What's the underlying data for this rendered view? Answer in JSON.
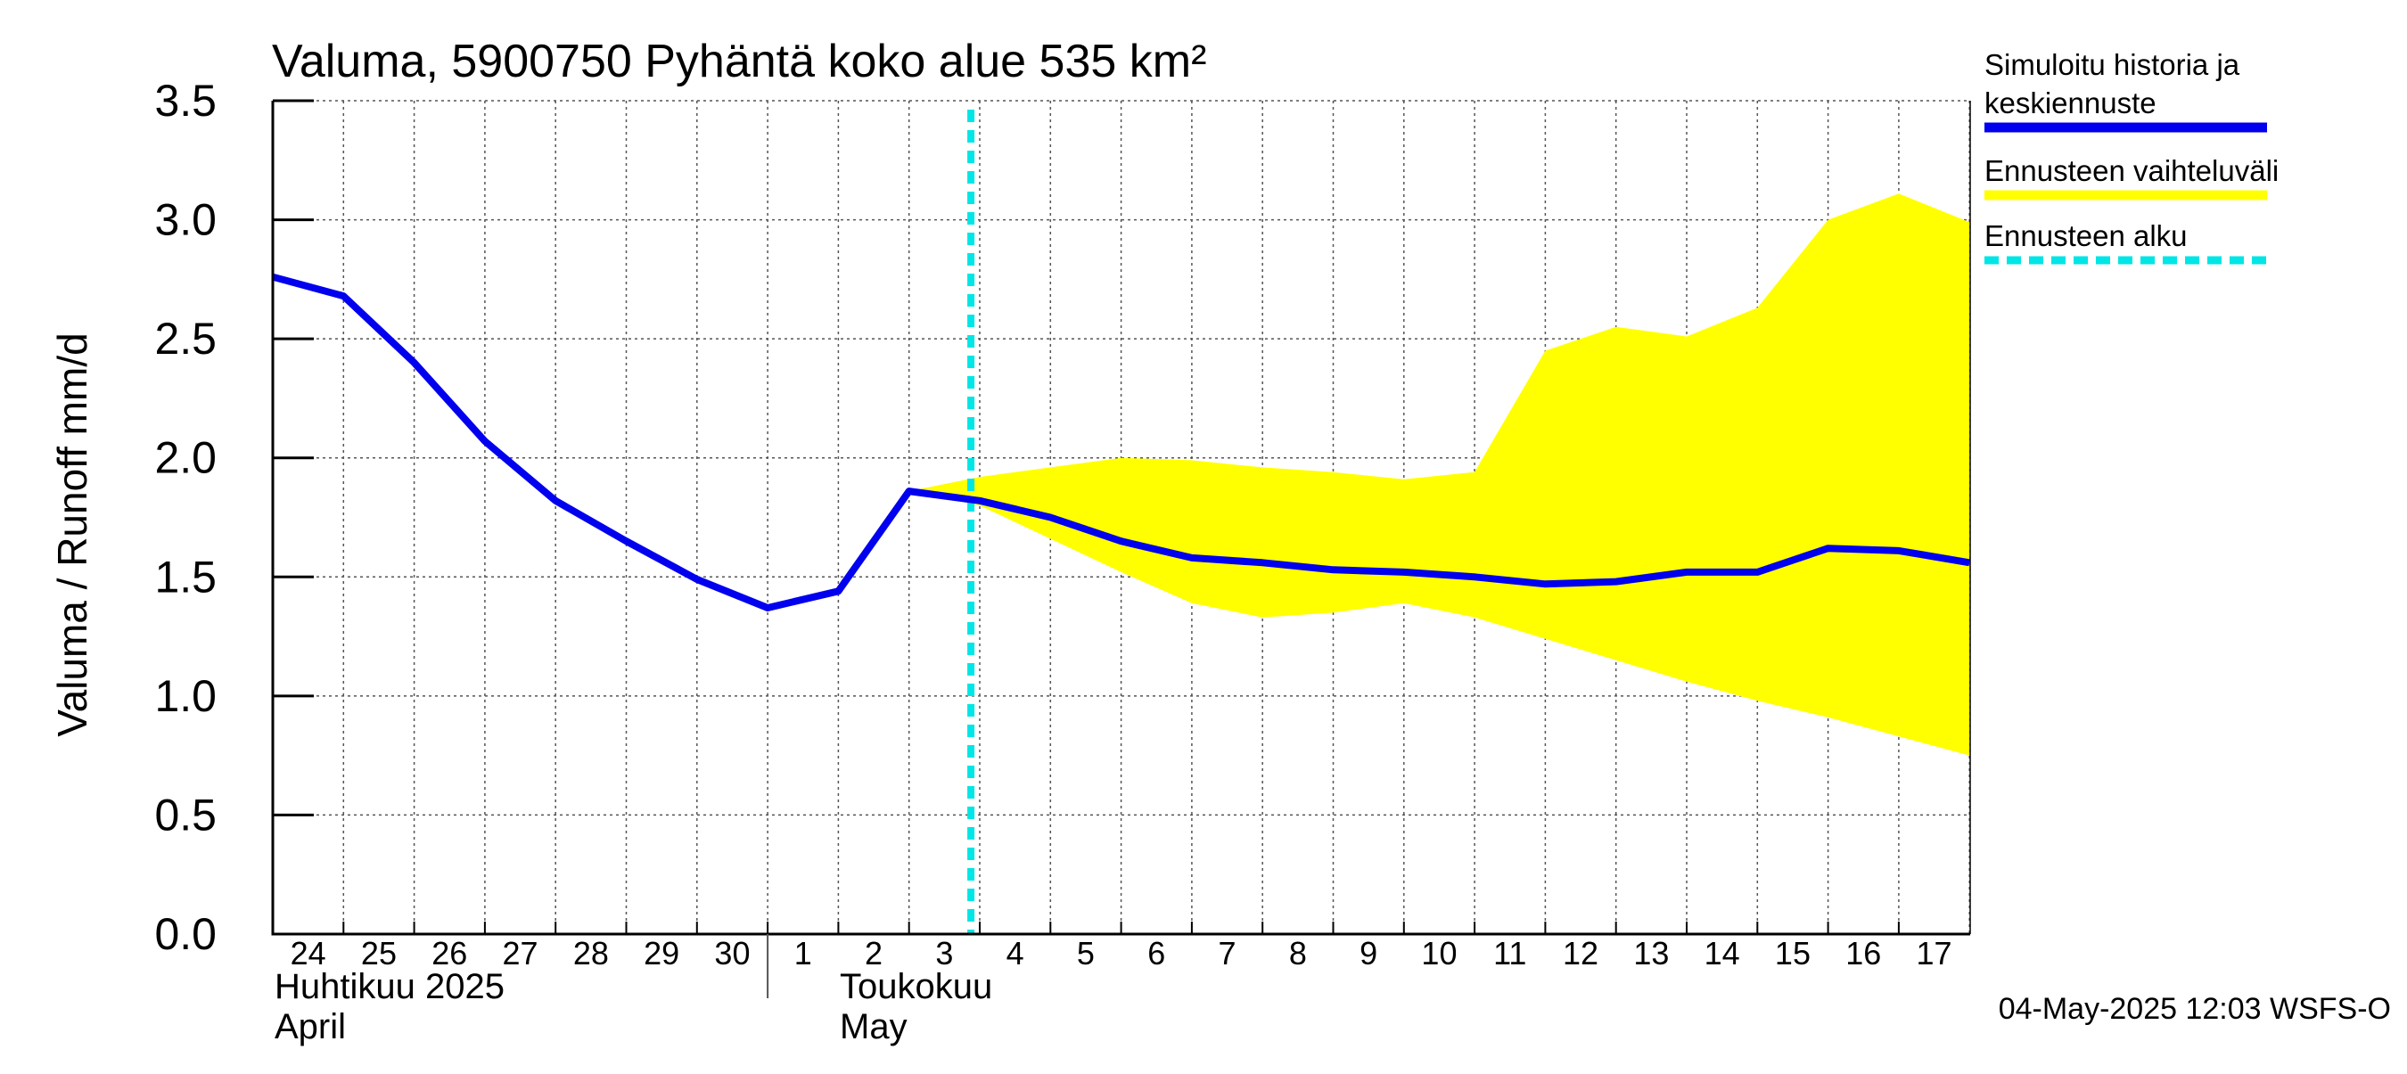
{
  "chart_data": {
    "type": "line",
    "title": "Valuma, 5900750 Pyhäntä koko alue 535 km²",
    "ylabel": "Valuma / Runoff    mm/d",
    "ylim": [
      0,
      3.5
    ],
    "yticks": [
      "0.0",
      "0.5",
      "1.0",
      "1.5",
      "2.0",
      "2.5",
      "3.0",
      "3.5"
    ],
    "x_range_days": [
      "2025-04-24",
      "2025-05-17"
    ],
    "x_day_labels": [
      "24",
      "25",
      "26",
      "27",
      "28",
      "29",
      "30",
      "1",
      "2",
      "3",
      "4",
      "5",
      "6",
      "7",
      "8",
      "9",
      "10",
      "11",
      "12",
      "13",
      "14",
      "15",
      "16",
      "17"
    ],
    "month_labels": [
      {
        "fi": "Huhtikuu  2025",
        "en": "April",
        "start": "2025-04-24"
      },
      {
        "fi": "Toukokuu",
        "en": "May",
        "start": "2025-05-02"
      }
    ],
    "forecast_start": "2025-05-03T21:00",
    "series": [
      {
        "name": "Simuloitu historia ja keskiennuste",
        "color": "#0000ee",
        "points": [
          [
            "2025-04-24",
            2.76
          ],
          [
            "2025-04-25",
            2.68
          ],
          [
            "2025-04-26",
            2.4
          ],
          [
            "2025-04-27",
            2.07
          ],
          [
            "2025-04-28",
            1.82
          ],
          [
            "2025-04-29",
            1.65
          ],
          [
            "2025-04-30",
            1.49
          ],
          [
            "2025-05-01",
            1.37
          ],
          [
            "2025-05-02",
            1.44
          ],
          [
            "2025-05-03",
            1.86
          ],
          [
            "2025-05-04",
            1.82
          ],
          [
            "2025-05-05",
            1.75
          ],
          [
            "2025-05-06",
            1.65
          ],
          [
            "2025-05-07",
            1.58
          ],
          [
            "2025-05-08",
            1.56
          ],
          [
            "2025-05-09",
            1.53
          ],
          [
            "2025-05-10",
            1.52
          ],
          [
            "2025-05-11",
            1.5
          ],
          [
            "2025-05-12",
            1.47
          ],
          [
            "2025-05-13",
            1.48
          ],
          [
            "2025-05-14",
            1.52
          ],
          [
            "2025-05-15",
            1.52
          ],
          [
            "2025-05-16",
            1.62
          ],
          [
            "2025-05-17",
            1.61
          ],
          [
            "2025-05-18",
            1.56
          ]
        ]
      },
      {
        "name": "Ennusteen vaihteluväli",
        "color": "#ffff00",
        "upper": [
          [
            "2025-05-03",
            1.86
          ],
          [
            "2025-05-04",
            1.92
          ],
          [
            "2025-05-05",
            1.96
          ],
          [
            "2025-05-06",
            2.0
          ],
          [
            "2025-05-07",
            1.99
          ],
          [
            "2025-05-08",
            1.96
          ],
          [
            "2025-05-09",
            1.94
          ],
          [
            "2025-05-10",
            1.91
          ],
          [
            "2025-05-11",
            1.94
          ],
          [
            "2025-05-12",
            2.45
          ],
          [
            "2025-05-13",
            2.55
          ],
          [
            "2025-05-14",
            2.51
          ],
          [
            "2025-05-15",
            2.63
          ],
          [
            "2025-05-16",
            3.0
          ],
          [
            "2025-05-17",
            3.11
          ],
          [
            "2025-05-18",
            2.99
          ]
        ],
        "lower": [
          [
            "2025-05-18",
            0.75
          ],
          [
            "2025-05-17",
            0.83
          ],
          [
            "2025-05-16",
            0.91
          ],
          [
            "2025-05-15",
            0.98
          ],
          [
            "2025-05-14",
            1.06
          ],
          [
            "2025-05-13",
            1.15
          ],
          [
            "2025-05-12",
            1.24
          ],
          [
            "2025-05-11",
            1.33
          ],
          [
            "2025-05-10",
            1.39
          ],
          [
            "2025-05-09",
            1.35
          ],
          [
            "2025-05-08",
            1.33
          ],
          [
            "2025-05-07",
            1.39
          ],
          [
            "2025-05-06",
            1.52
          ],
          [
            "2025-05-05",
            1.66
          ],
          [
            "2025-05-04",
            1.8
          ],
          [
            "2025-05-03",
            1.86
          ]
        ]
      }
    ],
    "legend": [
      {
        "label_lines": [
          "Simuloitu historia ja",
          "keskiennuste"
        ],
        "style": "solid",
        "color": "#0000ee"
      },
      {
        "label_lines": [
          "Ennusteen vaihteluväli"
        ],
        "style": "solid",
        "color": "#ffff00"
      },
      {
        "label_lines": [
          "Ennusteen alku"
        ],
        "style": "dashed",
        "color": "#00e5e5"
      }
    ],
    "legend_position": "right",
    "grid": true,
    "footer": "04-May-2025 12:03 WSFS-O"
  }
}
